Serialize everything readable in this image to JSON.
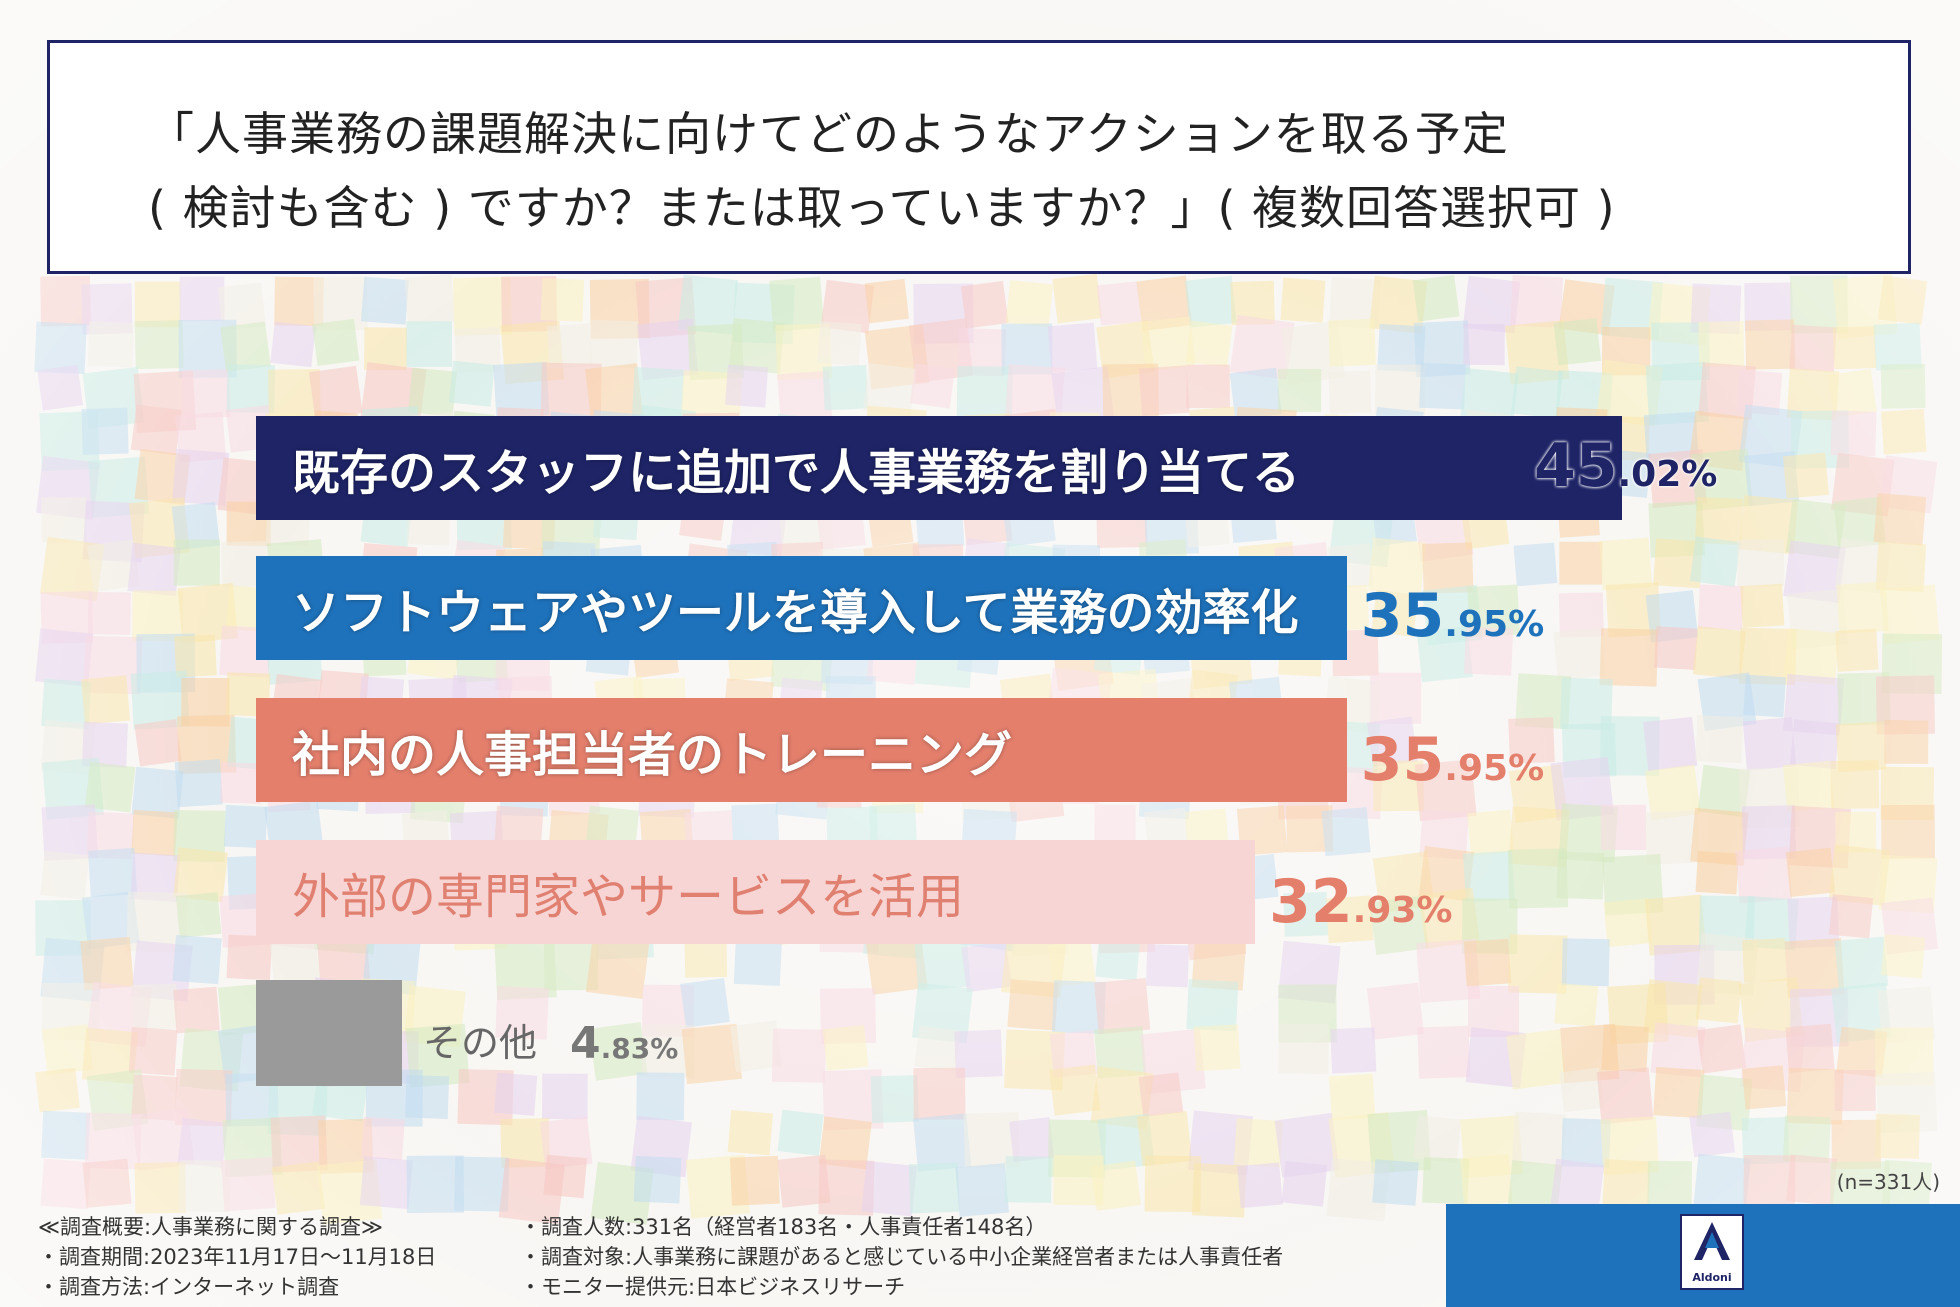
{
  "title": {
    "line1": "「人事業務の課題解決に向けてどのようなアクションを取る予定",
    "line2": "( 検討も含む ) ですか？または取っていますか？」( 複数回答選択可 )"
  },
  "chart_data": {
    "type": "bar",
    "orientation": "horizontal",
    "categories": [
      "既存のスタッフに追加で人事業務を割り当てる",
      "ソフトウェアやツールを導入して業務の効率化",
      "社内の人事担当者のトレーニング",
      "外部の専門家やサービスを活用",
      "その他"
    ],
    "values": [
      45.02,
      35.95,
      35.95,
      32.93,
      4.83
    ],
    "value_labels": [
      {
        "int": "45",
        "dec": ".02%"
      },
      {
        "int": "35",
        "dec": ".95%"
      },
      {
        "int": "35",
        "dec": ".95%"
      },
      {
        "int": "32",
        "dec": ".93%"
      },
      {
        "int": "4",
        "dec": ".83%"
      }
    ],
    "colors": [
      "#1e2466",
      "#1e72bb",
      "#e47f6c",
      "#f8d5d5",
      "#9a9a9a"
    ],
    "label_colors": [
      "#1e2466",
      "#1e72bb",
      "#e47f6c",
      "#e47f6c",
      "#777777"
    ]
  },
  "sample_size": "(n=331人)",
  "notes_left": [
    "≪調査概要:人事業務に関する調査≫",
    "・調査期間:2023年11月17日〜11月18日",
    "・調査方法:インターネット調査"
  ],
  "notes_right": [
    "・調査人数:331名（経営者183名・人事責任者148名）",
    "・調査対象:人事業務に課題があると感じている中小企業経営者または人事責任者",
    "・モニター提供元:日本ビジネスリサーチ"
  ],
  "logo_text": "Aldoni",
  "accent_color": "#1e72bb"
}
